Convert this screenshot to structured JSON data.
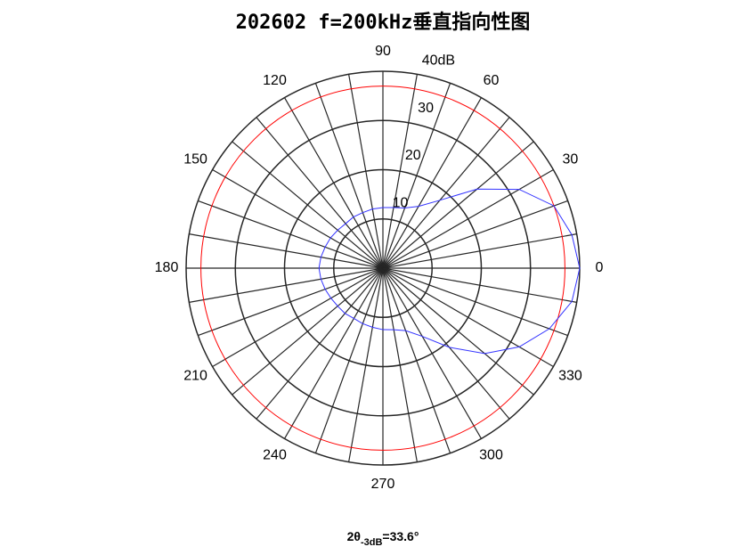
{
  "chart_data": {
    "type": "polar",
    "title": "202602 f=200kHz垂直指向性图",
    "theta": [
      0,
      10,
      20,
      30,
      40,
      50,
      60,
      70,
      80,
      90,
      100,
      110,
      120,
      130,
      140,
      150,
      160,
      170,
      180,
      190,
      200,
      210,
      220,
      230,
      240,
      250,
      260,
      270,
      280,
      290,
      300,
      310,
      320,
      330,
      340,
      350
    ],
    "series": [
      {
        "color": "#3333ff",
        "values": [
          40,
          39,
          37,
          32,
          25,
          18,
          14.5,
          13,
          12.5,
          12.3,
          12.2,
          12,
          12,
          11.8,
          12,
          12.3,
          12.5,
          12.8,
          13,
          12.8,
          12.5,
          12.2,
          12,
          12,
          11.8,
          12,
          12.2,
          12.5,
          12.7,
          13.5,
          16,
          21,
          27,
          32,
          36,
          39
        ]
      }
    ],
    "rlim": [
      0,
      40
    ],
    "rticks": [
      10,
      20,
      30,
      {
        "value": 40,
        "label": "40dB"
      }
    ],
    "thetaticks": [
      0,
      30,
      60,
      90,
      120,
      150,
      180,
      210,
      240,
      270,
      300,
      330
    ],
    "thetagrid": [
      0,
      10,
      20,
      30,
      40,
      50,
      60,
      70,
      80,
      90,
      100,
      110,
      120,
      130,
      140,
      150,
      160,
      170,
      180,
      190,
      200,
      210,
      220,
      230,
      240,
      250,
      260,
      270,
      280,
      290,
      300,
      310,
      320,
      330,
      340,
      350
    ],
    "reference_circle": {
      "value": 37,
      "color": "#ff0000"
    },
    "annotation": {
      "prefix": "2θ",
      "subscript": "-3dB",
      "suffix": "=33.6°"
    }
  }
}
